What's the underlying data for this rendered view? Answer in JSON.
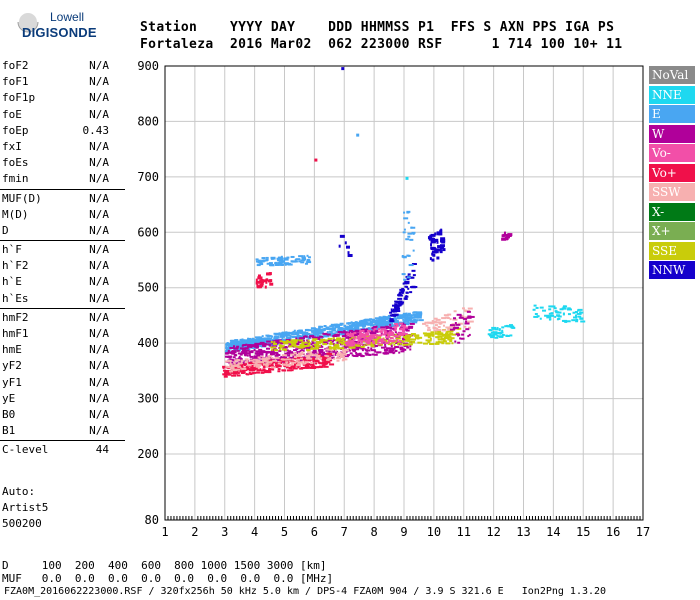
{
  "logo": {
    "line1": "Lowell",
    "line2": "DIGISONDE"
  },
  "header": {
    "line1": "Station    YYYY DAY    DDD HHMMSS P1  FFS S AXN PPS IGA PS",
    "line2": "Fortaleza  2016 Mar02  062 223000 RSF      1 714 100 10+ 11"
  },
  "params": [
    [
      {
        "name": "foF2",
        "value": "N/A"
      },
      {
        "name": "foF1",
        "value": "N/A"
      },
      {
        "name": "foF1p",
        "value": "N/A"
      },
      {
        "name": "foE",
        "value": "N/A"
      },
      {
        "name": "foEp",
        "value": "0.43"
      },
      {
        "name": "fxI",
        "value": "N/A"
      },
      {
        "name": "foEs",
        "value": "N/A"
      },
      {
        "name": "fmin",
        "value": "N/A"
      }
    ],
    [
      {
        "name": "MUF(D)",
        "value": "N/A"
      },
      {
        "name": "M(D)",
        "value": "N/A"
      },
      {
        "name": "D",
        "value": "N/A"
      }
    ],
    [
      {
        "name": "h`F",
        "value": "N/A"
      },
      {
        "name": "h`F2",
        "value": "N/A"
      },
      {
        "name": "h`E",
        "value": "N/A"
      },
      {
        "name": "h`Es",
        "value": "N/A"
      }
    ],
    [
      {
        "name": "hmF2",
        "value": "N/A"
      },
      {
        "name": "hmF1",
        "value": "N/A"
      },
      {
        "name": "hmE",
        "value": "N/A"
      },
      {
        "name": "yF2",
        "value": "N/A"
      },
      {
        "name": "yF1",
        "value": "N/A"
      },
      {
        "name": "yE",
        "value": "N/A"
      },
      {
        "name": "B0",
        "value": "N/A"
      },
      {
        "name": "B1",
        "value": "N/A"
      }
    ],
    [
      {
        "name": "C-level",
        "value": "44"
      }
    ]
  ],
  "auto": {
    "label": "Auto:",
    "artist": "Artist5",
    "code": "500200"
  },
  "legend": [
    {
      "label": "NoVal",
      "color": "#8a8a8a"
    },
    {
      "label": "NNE",
      "color": "#1ed8f0"
    },
    {
      "label": "E",
      "color": "#49a6f2"
    },
    {
      "label": "W",
      "color": "#b0009a"
    },
    {
      "label": "Vo-",
      "color": "#f24fa8"
    },
    {
      "label": "Vo+",
      "color": "#f0104a"
    },
    {
      "label": "SSW",
      "color": "#f7b0b0"
    },
    {
      "label": "X-",
      "color": "#007a16"
    },
    {
      "label": "X+",
      "color": "#7aae52"
    },
    {
      "label": "SSE",
      "color": "#c9cc0a"
    },
    {
      "label": "NNW",
      "color": "#1500cc"
    }
  ],
  "axes": {
    "x_ticks": [
      "1",
      "2",
      "3",
      "4",
      "5",
      "6",
      "7",
      "8",
      "9",
      "10",
      "11",
      "12",
      "13",
      "14",
      "15",
      "16",
      "17"
    ],
    "y_ticks": [
      "80",
      "200",
      "300",
      "400",
      "500",
      "600",
      "700",
      "800",
      "900"
    ],
    "x_range": [
      1,
      17
    ],
    "y_range": [
      80,
      900
    ],
    "grid": true
  },
  "bottom": {
    "d_line": "D     100  200  400  600  800 1000 1500 3000 [km]",
    "muf_line": "MUF   0.0  0.0  0.0  0.0  0.0  0.0  0.0  0.0 [MHz]"
  },
  "footer": "FZA0M_2016062223000.RSF / 320fx256h 50 kHz 5.0 km / DPS-4 FZA0M 904 / 3.9 S 321.6 E   Ion2Png 1.3.20"
}
